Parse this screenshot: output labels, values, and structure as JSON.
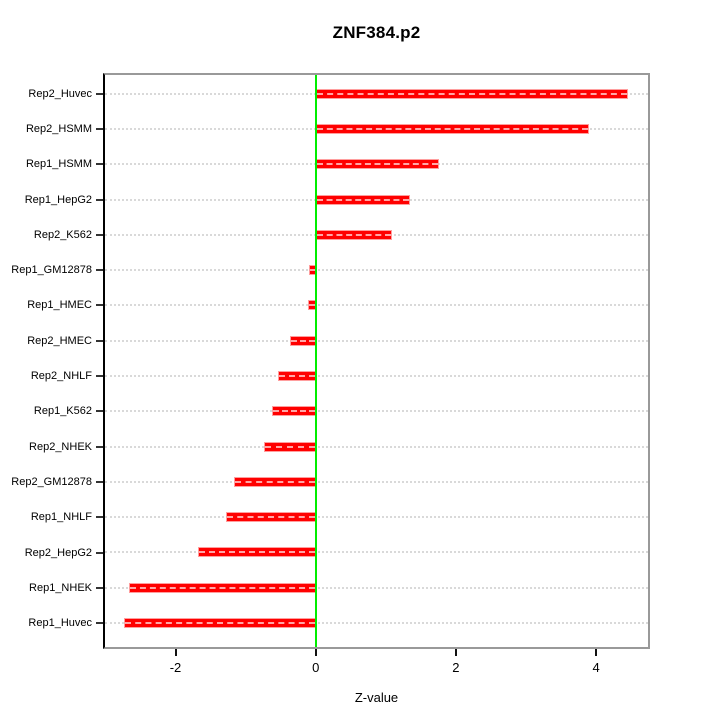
{
  "chart_data": {
    "type": "bar",
    "orientation": "horizontal",
    "title": "ZNF384.p2",
    "xlabel": "Z-value",
    "ylabel": "",
    "categories": [
      "Rep2_Huvec",
      "Rep2_HSMM",
      "Rep1_HSMM",
      "Rep1_HepG2",
      "Rep2_K562",
      "Rep1_GM12878",
      "Rep1_HMEC",
      "Rep2_HMEC",
      "Rep2_NHLF",
      "Rep1_K562",
      "Rep2_NHEK",
      "Rep2_GM12878",
      "Rep1_NHLF",
      "Rep2_HepG2",
      "Rep1_NHEK",
      "Rep1_Huvec"
    ],
    "values": [
      4.46,
      3.9,
      1.76,
      1.34,
      1.09,
      -0.09,
      -0.11,
      -0.37,
      -0.54,
      -0.63,
      -0.74,
      -1.17,
      -1.28,
      -1.68,
      -2.67,
      -2.74
    ],
    "xticks": [
      "-2",
      "0",
      "2",
      "4"
    ],
    "xtick_values": [
      -2,
      0,
      2,
      4
    ],
    "xlim": [
      -3.0,
      4.75
    ],
    "grid": "horizontal dotted line per category",
    "legend_position": "none",
    "colors": {
      "bar_fill": "#ff0000",
      "bar_border": "#ff9e9e",
      "zero_line": "#00ee00",
      "grid_line": "#d9d9d9",
      "frame": "#999999",
      "axis": "#000000",
      "text": "#000000",
      "background": "#ffffff"
    }
  }
}
